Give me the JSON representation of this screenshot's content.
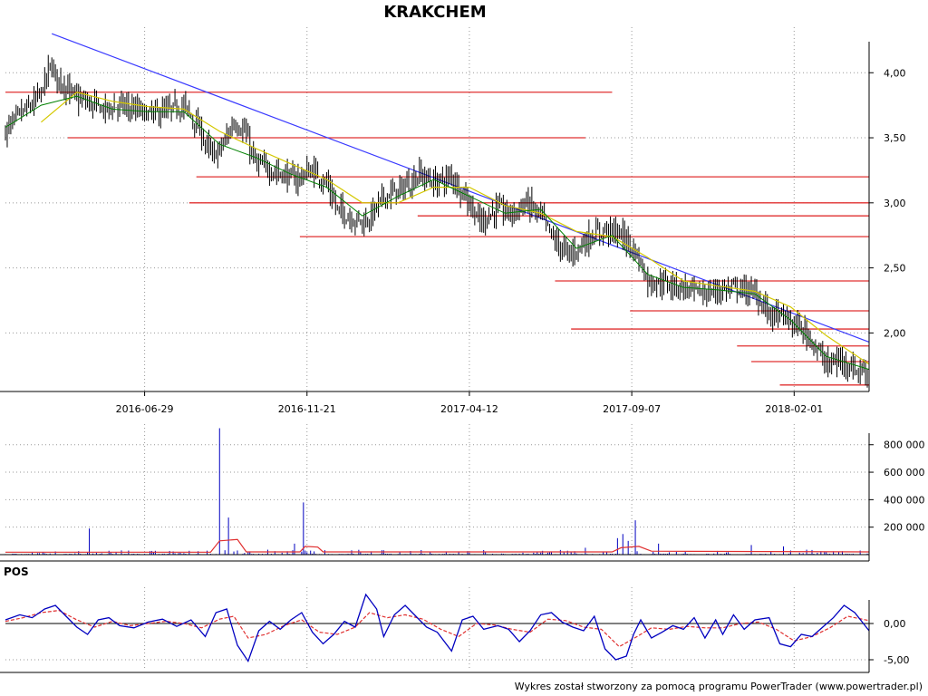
{
  "title": "KRAKCHEM",
  "footer": "Wykres został stworzony za pomocą programu PowerTrader (www.powertrader.pl)",
  "colors": {
    "candle": "#000000",
    "sma_short": "#008000",
    "sma_long": "#d4c800",
    "trendline": "#3a3aff",
    "support": "#e03030",
    "volume_bar": "#0000c0",
    "volume_avg": "#e03030",
    "pos_line": "#0000c0",
    "pos_signal": "#e03030",
    "grid": "#999999"
  },
  "chart_data": [
    {
      "type": "candlestick",
      "panel": "price",
      "x_tick_labels": [
        "2016-06-29",
        "2016-11-21",
        "2017-04-12",
        "2017-09-07",
        "2018-02-01"
      ],
      "y_tick_labels": [
        "4,00",
        "3,50",
        "3,00",
        "2,50",
        "2,00"
      ],
      "ylim": [
        1.55,
        4.35
      ],
      "close_path": [
        [
          0,
          3.55
        ],
        [
          8,
          3.68
        ],
        [
          15,
          3.75
        ],
        [
          20,
          3.85
        ],
        [
          25,
          4.05
        ],
        [
          30,
          3.95
        ],
        [
          40,
          3.8
        ],
        [
          55,
          3.72
        ],
        [
          65,
          3.75
        ],
        [
          80,
          3.68
        ],
        [
          90,
          3.7
        ],
        [
          100,
          3.75
        ],
        [
          108,
          3.58
        ],
        [
          116,
          3.35
        ],
        [
          122,
          3.45
        ],
        [
          128,
          3.62
        ],
        [
          134,
          3.55
        ],
        [
          140,
          3.3
        ],
        [
          150,
          3.25
        ],
        [
          162,
          3.18
        ],
        [
          172,
          3.25
        ],
        [
          180,
          3.15
        ],
        [
          186,
          2.95
        ],
        [
          194,
          2.88
        ],
        [
          202,
          2.85
        ],
        [
          212,
          3.05
        ],
        [
          222,
          3.1
        ],
        [
          232,
          3.22
        ],
        [
          240,
          3.15
        ],
        [
          250,
          3.2
        ],
        [
          258,
          3.05
        ],
        [
          266,
          2.85
        ],
        [
          275,
          2.95
        ],
        [
          284,
          2.92
        ],
        [
          292,
          3.0
        ],
        [
          300,
          2.9
        ],
        [
          308,
          2.7
        ],
        [
          316,
          2.6
        ],
        [
          326,
          2.72
        ],
        [
          336,
          2.8
        ],
        [
          346,
          2.75
        ],
        [
          354,
          2.6
        ],
        [
          360,
          2.4
        ],
        [
          370,
          2.38
        ],
        [
          380,
          2.35
        ],
        [
          392,
          2.3
        ],
        [
          400,
          2.33
        ],
        [
          410,
          2.35
        ],
        [
          420,
          2.3
        ],
        [
          428,
          2.15
        ],
        [
          436,
          2.12
        ],
        [
          444,
          2.05
        ],
        [
          452,
          1.95
        ],
        [
          460,
          1.75
        ],
        [
          468,
          1.8
        ],
        [
          476,
          1.72
        ],
        [
          484,
          1.7
        ]
      ],
      "sma_short_path": [
        [
          0,
          3.58
        ],
        [
          20,
          3.75
        ],
        [
          40,
          3.82
        ],
        [
          60,
          3.72
        ],
        [
          80,
          3.7
        ],
        [
          100,
          3.7
        ],
        [
          120,
          3.45
        ],
        [
          140,
          3.35
        ],
        [
          160,
          3.22
        ],
        [
          180,
          3.12
        ],
        [
          200,
          2.9
        ],
        [
          220,
          3.05
        ],
        [
          240,
          3.18
        ],
        [
          260,
          3.05
        ],
        [
          280,
          2.92
        ],
        [
          300,
          2.95
        ],
        [
          320,
          2.65
        ],
        [
          340,
          2.75
        ],
        [
          360,
          2.45
        ],
        [
          380,
          2.35
        ],
        [
          400,
          2.33
        ],
        [
          420,
          2.3
        ],
        [
          440,
          2.1
        ],
        [
          460,
          1.82
        ],
        [
          484,
          1.72
        ]
      ],
      "sma_long_path": [
        [
          20,
          3.62
        ],
        [
          40,
          3.85
        ],
        [
          60,
          3.78
        ],
        [
          80,
          3.74
        ],
        [
          100,
          3.72
        ],
        [
          120,
          3.55
        ],
        [
          140,
          3.42
        ],
        [
          160,
          3.3
        ],
        [
          180,
          3.18
        ],
        [
          200,
          3.0
        ],
        [
          220,
          3.0
        ],
        [
          240,
          3.12
        ],
        [
          260,
          3.12
        ],
        [
          280,
          2.98
        ],
        [
          300,
          2.92
        ],
        [
          320,
          2.78
        ],
        [
          340,
          2.74
        ],
        [
          360,
          2.58
        ],
        [
          380,
          2.4
        ],
        [
          400,
          2.36
        ],
        [
          420,
          2.32
        ],
        [
          440,
          2.2
        ],
        [
          460,
          1.98
        ],
        [
          484,
          1.76
        ]
      ],
      "trendline": {
        "from": [
          26,
          4.3
        ],
        "to": [
          484,
          1.93
        ]
      },
      "horizontal_levels": [
        {
          "value": 3.85,
          "from": 0,
          "to": 340
        },
        {
          "value": 3.5,
          "from": 35,
          "to": 325
        },
        {
          "value": 3.2,
          "from": 107,
          "to": 484
        },
        {
          "value": 3.0,
          "from": 103,
          "to": 484
        },
        {
          "value": 2.9,
          "from": 231,
          "to": 484
        },
        {
          "value": 2.74,
          "from": 165,
          "to": 484
        },
        {
          "value": 2.4,
          "from": 308,
          "to": 484
        },
        {
          "value": 2.17,
          "from": 350,
          "to": 484
        },
        {
          "value": 2.03,
          "from": 317,
          "to": 484
        },
        {
          "value": 1.9,
          "from": 410,
          "to": 484
        },
        {
          "value": 1.78,
          "from": 418,
          "to": 484
        },
        {
          "value": 1.6,
          "from": 434,
          "to": 484
        }
      ],
      "n_bars": 485,
      "x_tick_positions": [
        78,
        169,
        260,
        351,
        442
      ]
    },
    {
      "type": "bar",
      "panel": "volume",
      "y_tick_labels": [
        "800 000",
        "600 000",
        "400 000",
        "200 000"
      ],
      "y_tick_values": [
        800000,
        600000,
        400000,
        200000
      ],
      "ylim": [
        0,
        950000
      ],
      "baseline_volume": 12000,
      "spikes": [
        [
          47,
          190000
        ],
        [
          120,
          920000
        ],
        [
          125,
          270000
        ],
        [
          167,
          380000
        ],
        [
          162,
          80000
        ],
        [
          343,
          120000
        ],
        [
          346,
          150000
        ],
        [
          353,
          250000
        ],
        [
          349,
          100000
        ],
        [
          366,
          80000
        ],
        [
          418,
          70000
        ],
        [
          436,
          60000
        ],
        [
          325,
          50000
        ]
      ],
      "avg_path": [
        [
          0,
          18000
        ],
        [
          115,
          18000
        ],
        [
          120,
          100000
        ],
        [
          130,
          110000
        ],
        [
          135,
          20000
        ],
        [
          165,
          20000
        ],
        [
          168,
          60000
        ],
        [
          175,
          55000
        ],
        [
          178,
          20000
        ],
        [
          340,
          20000
        ],
        [
          345,
          50000
        ],
        [
          355,
          60000
        ],
        [
          362,
          25000
        ],
        [
          484,
          20000
        ]
      ]
    },
    {
      "type": "line",
      "panel": "indicator",
      "label": "POS",
      "y_tick_labels": [
        "0,00",
        "-5,00"
      ],
      "y_tick_values": [
        0,
        -5
      ],
      "ylim": [
        -6.5,
        5.0
      ],
      "pos_path": [
        [
          0,
          0.5
        ],
        [
          8,
          1.2
        ],
        [
          15,
          0.8
        ],
        [
          22,
          2.0
        ],
        [
          28,
          2.5
        ],
        [
          34,
          1.0
        ],
        [
          40,
          -0.5
        ],
        [
          46,
          -1.5
        ],
        [
          52,
          0.5
        ],
        [
          58,
          0.8
        ],
        [
          64,
          -0.3
        ],
        [
          72,
          -0.6
        ],
        [
          80,
          0.2
        ],
        [
          88,
          0.6
        ],
        [
          96,
          -0.4
        ],
        [
          104,
          0.5
        ],
        [
          112,
          -1.8
        ],
        [
          118,
          1.5
        ],
        [
          124,
          2.0
        ],
        [
          130,
          -3.0
        ],
        [
          136,
          -5.2
        ],
        [
          142,
          -1.0
        ],
        [
          148,
          0.3
        ],
        [
          154,
          -0.8
        ],
        [
          160,
          0.5
        ],
        [
          166,
          1.5
        ],
        [
          172,
          -1.2
        ],
        [
          178,
          -2.8
        ],
        [
          184,
          -1.5
        ],
        [
          190,
          0.3
        ],
        [
          196,
          -0.5
        ],
        [
          202,
          4.0
        ],
        [
          208,
          2.0
        ],
        [
          212,
          -1.8
        ],
        [
          218,
          1.2
        ],
        [
          224,
          2.5
        ],
        [
          230,
          1.0
        ],
        [
          236,
          -0.5
        ],
        [
          242,
          -1.2
        ],
        [
          250,
          -3.8
        ],
        [
          256,
          0.5
        ],
        [
          262,
          1.0
        ],
        [
          268,
          -0.8
        ],
        [
          276,
          -0.3
        ],
        [
          282,
          -0.8
        ],
        [
          288,
          -2.5
        ],
        [
          294,
          -1.0
        ],
        [
          300,
          1.2
        ],
        [
          306,
          1.5
        ],
        [
          312,
          0.2
        ],
        [
          318,
          -0.5
        ],
        [
          324,
          -1.0
        ],
        [
          330,
          1.0
        ],
        [
          336,
          -3.5
        ],
        [
          342,
          -5.0
        ],
        [
          348,
          -4.5
        ],
        [
          352,
          -1.5
        ],
        [
          356,
          0.5
        ],
        [
          362,
          -2.0
        ],
        [
          368,
          -1.2
        ],
        [
          374,
          -0.3
        ],
        [
          380,
          -0.8
        ],
        [
          386,
          0.8
        ],
        [
          392,
          -2.0
        ],
        [
          398,
          0.5
        ],
        [
          402,
          -1.5
        ],
        [
          408,
          1.2
        ],
        [
          414,
          -0.8
        ],
        [
          420,
          0.5
        ],
        [
          428,
          0.8
        ],
        [
          434,
          -2.8
        ],
        [
          440,
          -3.2
        ],
        [
          446,
          -1.5
        ],
        [
          452,
          -1.8
        ],
        [
          458,
          -0.5
        ],
        [
          464,
          0.8
        ],
        [
          470,
          2.5
        ],
        [
          476,
          1.5
        ],
        [
          484,
          -1.0
        ]
      ],
      "signal_path": [
        [
          0,
          0.3
        ],
        [
          10,
          0.8
        ],
        [
          20,
          1.5
        ],
        [
          30,
          1.8
        ],
        [
          40,
          0.5
        ],
        [
          50,
          -0.5
        ],
        [
          60,
          0.3
        ],
        [
          70,
          -0.3
        ],
        [
          80,
          0.0
        ],
        [
          90,
          0.3
        ],
        [
          100,
          0.0
        ],
        [
          110,
          -0.6
        ],
        [
          120,
          0.6
        ],
        [
          128,
          1.0
        ],
        [
          136,
          -2.0
        ],
        [
          146,
          -1.5
        ],
        [
          156,
          -0.3
        ],
        [
          166,
          0.5
        ],
        [
          176,
          -1.2
        ],
        [
          186,
          -1.5
        ],
        [
          196,
          -0.5
        ],
        [
          204,
          1.5
        ],
        [
          214,
          0.8
        ],
        [
          224,
          1.2
        ],
        [
          234,
          0.6
        ],
        [
          244,
          -0.8
        ],
        [
          254,
          -1.8
        ],
        [
          264,
          0.0
        ],
        [
          274,
          -0.2
        ],
        [
          284,
          -0.8
        ],
        [
          294,
          -1.2
        ],
        [
          304,
          0.6
        ],
        [
          314,
          0.4
        ],
        [
          324,
          -0.5
        ],
        [
          334,
          -0.8
        ],
        [
          344,
          -3.2
        ],
        [
          354,
          -1.8
        ],
        [
          362,
          -0.6
        ],
        [
          372,
          -0.8
        ],
        [
          382,
          -0.4
        ],
        [
          392,
          -0.6
        ],
        [
          402,
          -0.6
        ],
        [
          412,
          0.0
        ],
        [
          422,
          0.2
        ],
        [
          432,
          -0.8
        ],
        [
          442,
          -2.4
        ],
        [
          452,
          -1.8
        ],
        [
          462,
          -0.6
        ],
        [
          472,
          1.0
        ],
        [
          484,
          0.4
        ]
      ]
    }
  ]
}
